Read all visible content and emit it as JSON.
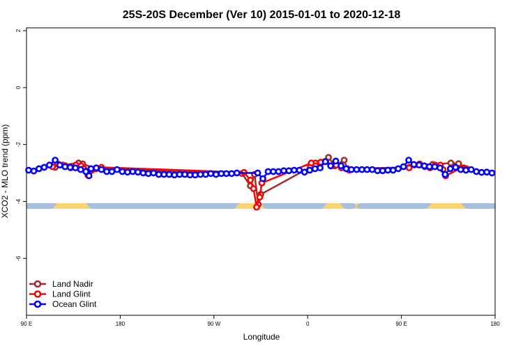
{
  "chart_data": {
    "type": "line",
    "title": "25S-20S December (Ver 10)   2015-01-01 to 2020-12-18",
    "xlabel": "Longitude",
    "ylabel": "XCO2 - MLO trend (ppm)",
    "xlim": [
      90,
      540
    ],
    "ylim": [
      -8,
      2.1
    ],
    "x_ticks": [
      {
        "value": 90,
        "label": "90 E"
      },
      {
        "value": 180,
        "label": "180"
      },
      {
        "value": 270,
        "label": "90 W"
      },
      {
        "value": 360,
        "label": "0"
      },
      {
        "value": 450,
        "label": "90 E"
      },
      {
        "value": 540,
        "label": "180"
      }
    ],
    "y_ticks": [
      {
        "value": 2,
        "label": "2"
      },
      {
        "value": 0,
        "label": "0"
      },
      {
        "value": -2,
        "label": "-2"
      },
      {
        "value": -4,
        "label": "-4"
      },
      {
        "value": -6,
        "label": "-6"
      }
    ],
    "legend_position": "bottom-left",
    "series": [
      {
        "name": "Land Nadir",
        "color": "#a52a2a",
        "x": [
          117.5,
          125,
          140,
          144,
          157,
          297,
          305,
          309,
          312.5,
          315,
          362.5,
          367.5,
          380,
          386,
          395,
          398,
          457.5,
          467.5,
          480,
          497.5,
          505,
          510
        ],
        "y": [
          -2.8,
          -2.72,
          -2.65,
          -2.68,
          -2.85,
          -3.02,
          -3.45,
          -3.05,
          -4.1,
          -3.75,
          -2.8,
          -2.65,
          -2.45,
          -2.75,
          -2.55,
          -2.85,
          -2.8,
          -2.7,
          -2.7,
          -2.65,
          -2.67,
          -2.82
        ]
      },
      {
        "name": "Land Glint",
        "color": "#ff0000",
        "x": [
          115,
          120,
          127.5,
          132.5,
          137.5,
          142.5,
          145,
          147.5,
          149,
          162,
          299,
          305,
          308,
          311,
          314,
          316,
          363.5,
          367.5,
          372.5,
          377.5,
          382.5,
          387.5,
          392.5,
          398,
          400,
          457.5,
          462.5,
          467.5,
          472.5,
          477.5,
          482.5,
          487.5,
          490,
          492.5,
          507.5,
          512.5
        ],
        "y": [
          -2.78,
          -2.68,
          -2.75,
          -2.82,
          -2.72,
          -2.75,
          -2.85,
          -2.92,
          -3.08,
          -2.8,
          -2.98,
          -3.25,
          -3.55,
          -4.2,
          -3.85,
          -3.35,
          -2.65,
          -2.75,
          -2.62,
          -2.6,
          -2.75,
          -2.72,
          -2.82,
          -2.85,
          -2.9,
          -2.82,
          -2.72,
          -2.68,
          -2.78,
          -2.82,
          -2.72,
          -2.72,
          -2.88,
          -3.1,
          -2.82,
          -2.85
        ]
      },
      {
        "name": "Ocean Glint",
        "color": "#0000ff",
        "x": [
          92,
          97,
          102,
          107,
          112,
          117.5,
          122,
          127,
          132,
          137,
          142,
          147,
          150,
          152,
          157,
          162,
          167,
          172,
          177,
          182,
          187,
          192,
          197,
          202,
          207,
          212,
          217,
          222,
          227,
          232,
          237,
          242,
          247,
          252,
          257,
          262,
          267,
          272,
          277,
          282,
          287,
          292,
          312,
          317,
          322,
          327,
          332,
          337,
          342,
          347,
          352,
          357,
          362,
          367,
          372,
          377,
          382,
          387,
          392,
          397,
          402,
          407,
          412,
          417,
          422,
          427,
          432,
          437,
          442,
          447,
          452,
          457,
          462,
          467,
          472,
          477,
          482,
          487,
          492,
          497,
          502,
          507,
          512,
          517,
          522,
          527,
          532,
          537
        ],
        "y": [
          -2.9,
          -2.93,
          -2.85,
          -2.8,
          -2.72,
          -2.55,
          -2.72,
          -2.78,
          -2.8,
          -2.82,
          -2.88,
          -2.95,
          -3.1,
          -2.85,
          -2.82,
          -2.88,
          -2.95,
          -2.95,
          -2.88,
          -2.95,
          -2.97,
          -2.95,
          -2.97,
          -3.0,
          -3.02,
          -3.0,
          -3.05,
          -3.05,
          -3.05,
          -3.07,
          -3.05,
          -3.05,
          -3.07,
          -3.07,
          -3.05,
          -3.05,
          -3.02,
          -3.05,
          -3.02,
          -3.02,
          -3.02,
          -3.0,
          -3.0,
          -3.2,
          -2.95,
          -2.95,
          -2.95,
          -2.92,
          -2.92,
          -2.9,
          -2.9,
          -2.97,
          -2.9,
          -2.85,
          -2.82,
          -2.6,
          -2.75,
          -2.58,
          -2.75,
          -2.85,
          -2.88,
          -2.88,
          -2.88,
          -2.88,
          -2.88,
          -2.92,
          -2.92,
          -2.9,
          -2.9,
          -2.85,
          -2.78,
          -2.55,
          -2.7,
          -2.72,
          -2.75,
          -2.78,
          -2.78,
          -2.82,
          -3.05,
          -2.85,
          -2.8,
          -2.88,
          -2.9,
          -2.88,
          -2.95,
          -2.98,
          -2.97,
          -3.0
        ]
      }
    ]
  }
}
